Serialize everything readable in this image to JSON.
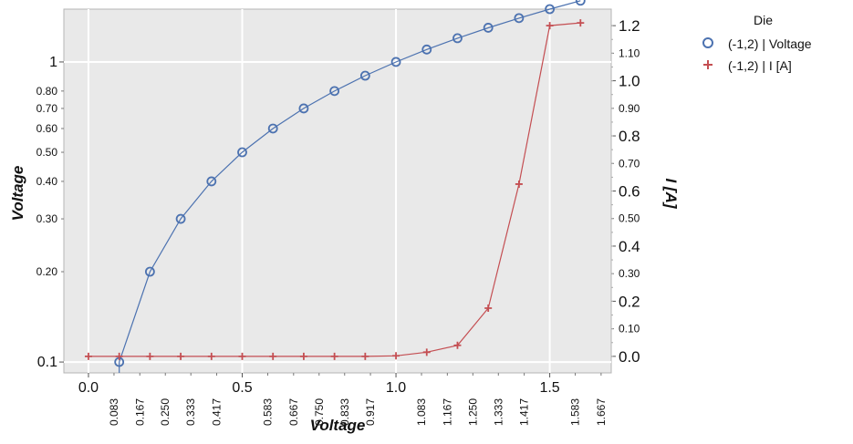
{
  "chart_data": {
    "type": "line",
    "xlabel": "Voltage",
    "ylabel_left": "Voltage",
    "ylabel_right": "I [A]",
    "x_scale": "linear",
    "y_left_scale": "log",
    "y_right_scale": "linear",
    "xlim": [
      -0.08,
      1.7
    ],
    "ylim_left": [
      0.092,
      1.5
    ],
    "ylim_right": [
      -0.06,
      1.26
    ],
    "grid": true,
    "legend_position": "right, outside",
    "legend_title": "Die",
    "x_major_ticks": [
      "0.0",
      "0.5",
      "1.0",
      "1.5"
    ],
    "x_minor_ticks": [
      "0.083",
      "0.167",
      "0.250",
      "0.333",
      "0.417",
      "0.583",
      "0.667",
      "0.750",
      "0.833",
      "0.917",
      "1.083",
      "1.167",
      "1.250",
      "1.333",
      "1.417",
      "1.583",
      "1.667"
    ],
    "y_left_major_ticks": [
      "0.1",
      "1"
    ],
    "y_left_minor_ticks": [
      "0.20",
      "0.30",
      "0.40",
      "0.50",
      "0.60",
      "0.70",
      "0.80"
    ],
    "y_right_major_ticks": [
      "0.0",
      "0.2",
      "0.4",
      "0.6",
      "0.8",
      "1.0",
      "1.2"
    ],
    "y_right_minor_ticks": [
      "0.10",
      "0.30",
      "0.50",
      "0.70",
      "0.90",
      "1.10"
    ],
    "series": [
      {
        "name": "(-1,2) | Voltage",
        "axis": "left",
        "color": "#4c72b0",
        "marker": "circle",
        "x": [
          0.1,
          0.2,
          0.3,
          0.4,
          0.5,
          0.6,
          0.7,
          0.8,
          0.9,
          1.0,
          1.1,
          1.2,
          1.3,
          1.4,
          1.5,
          1.6
        ],
        "y": [
          0.1,
          0.2,
          0.3,
          0.4,
          0.5,
          0.6,
          0.7,
          0.8,
          0.9,
          1.0,
          1.1,
          1.2,
          1.3,
          1.4,
          1.5,
          1.6
        ]
      },
      {
        "name": "(-1,2) | I [A]",
        "axis": "right",
        "color": "#c44e52",
        "marker": "plus",
        "x": [
          0.0,
          0.1,
          0.2,
          0.3,
          0.4,
          0.5,
          0.6,
          0.7,
          0.8,
          0.9,
          1.0,
          1.1,
          1.2,
          1.3,
          1.4,
          1.5,
          1.6
        ],
        "y": [
          0.0,
          0.0,
          0.0,
          0.0,
          0.0,
          0.0,
          0.0,
          0.0,
          0.0,
          0.0,
          0.002,
          0.015,
          0.04,
          0.175,
          0.625,
          1.2,
          1.21
        ]
      }
    ]
  }
}
